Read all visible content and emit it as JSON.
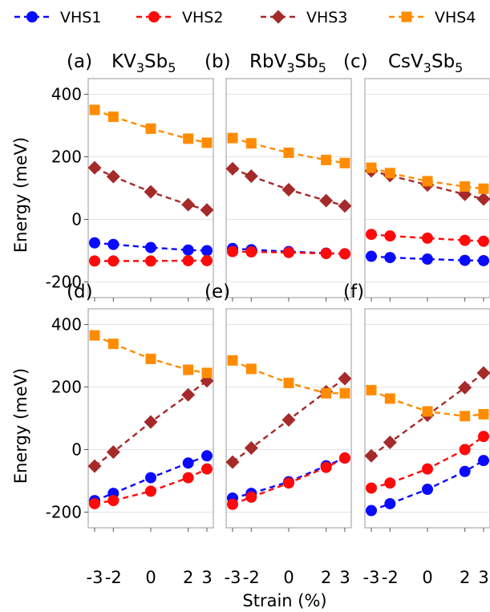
{
  "legend": {
    "entries": [
      {
        "label": "VHS1",
        "color": "#0a0aff",
        "marker": "circle"
      },
      {
        "label": "VHS2",
        "color": "#ff0a0a",
        "marker": "circle"
      },
      {
        "label": "VHS3",
        "color": "#a52a2a",
        "marker": "diamond"
      },
      {
        "label": "VHS4",
        "color": "#ff8c00",
        "marker": "square"
      }
    ]
  },
  "shared_ylabel": "Energy (meV)",
  "shared_xlabel": "Strain (%)",
  "chart_data": [
    {
      "type": "line",
      "panel": "(a)",
      "title_formula": [
        "KV",
        "3",
        "Sb",
        "5"
      ],
      "x": [
        -3,
        -2,
        0,
        2,
        3
      ],
      "xticks": [
        "-3",
        "-2",
        "0",
        "2",
        "3"
      ],
      "ylim": [
        -250,
        450
      ],
      "yticks": [
        -200,
        0,
        200,
        400
      ],
      "series": [
        {
          "name": "VHS1",
          "values": [
            -75,
            -80,
            -90,
            -98,
            -100
          ]
        },
        {
          "name": "VHS2",
          "values": [
            -133,
            -133,
            -133,
            -132,
            -132
          ]
        },
        {
          "name": "VHS3",
          "values": [
            165,
            137,
            88,
            47,
            30
          ]
        },
        {
          "name": "VHS4",
          "values": [
            350,
            328,
            290,
            258,
            245
          ]
        }
      ]
    },
    {
      "type": "line",
      "panel": "(b)",
      "title_formula": [
        "RbV",
        "3",
        "Sb",
        "5"
      ],
      "x": [
        -3,
        -2,
        0,
        2,
        3
      ],
      "xticks": [
        "-3",
        "-2",
        "0",
        "2",
        "3"
      ],
      "ylim": [
        -250,
        450
      ],
      "yticks": [
        -200,
        0,
        200,
        400
      ],
      "series": [
        {
          "name": "VHS1",
          "values": [
            -93,
            -97,
            -103,
            -108,
            -110
          ]
        },
        {
          "name": "VHS2",
          "values": [
            -103,
            -104,
            -106,
            -109,
            -110
          ]
        },
        {
          "name": "VHS3",
          "values": [
            162,
            138,
            95,
            60,
            43
          ]
        },
        {
          "name": "VHS4",
          "values": [
            260,
            243,
            213,
            190,
            180
          ]
        }
      ]
    },
    {
      "type": "line",
      "panel": "(c)",
      "title_formula": [
        "CsV",
        "3",
        "Sb",
        "5"
      ],
      "x": [
        -3,
        -2,
        0,
        2,
        3
      ],
      "xticks": [
        "-3",
        "-2",
        "0",
        "2",
        "3"
      ],
      "ylim": [
        -250,
        450
      ],
      "yticks": [
        -200,
        0,
        200,
        400
      ],
      "series": [
        {
          "name": "VHS1",
          "values": [
            -118,
            -122,
            -127,
            -131,
            -132
          ]
        },
        {
          "name": "VHS2",
          "values": [
            -48,
            -53,
            -60,
            -67,
            -70
          ]
        },
        {
          "name": "VHS3",
          "values": [
            155,
            140,
            110,
            80,
            65
          ]
        },
        {
          "name": "VHS4",
          "values": [
            165,
            148,
            122,
            105,
            98
          ]
        }
      ]
    },
    {
      "type": "line",
      "panel": "(d)",
      "title_formula": [],
      "x": [
        -3,
        -2,
        0,
        2,
        3
      ],
      "xticks": [
        "-3",
        "-2",
        "0",
        "2",
        "3"
      ],
      "ylim": [
        -250,
        450
      ],
      "yticks": [
        -200,
        0,
        200,
        400
      ],
      "series": [
        {
          "name": "VHS1",
          "values": [
            -163,
            -140,
            -90,
            -43,
            -20
          ]
        },
        {
          "name": "VHS2",
          "values": [
            -173,
            -163,
            -133,
            -90,
            -62
          ]
        },
        {
          "name": "VHS3",
          "values": [
            -53,
            -8,
            88,
            175,
            220
          ]
        },
        {
          "name": "VHS4",
          "values": [
            365,
            338,
            290,
            255,
            245
          ]
        }
      ]
    },
    {
      "type": "line",
      "panel": "(e)",
      "title_formula": [],
      "x": [
        -3,
        -2,
        0,
        2,
        3
      ],
      "xticks": [
        "-3",
        "-2",
        "0",
        "2",
        "3"
      ],
      "ylim": [
        -250,
        450
      ],
      "yticks": [
        -200,
        0,
        200,
        400
      ],
      "series": [
        {
          "name": "VHS1",
          "values": [
            -155,
            -140,
            -103,
            -52,
            -27
          ]
        },
        {
          "name": "VHS2",
          "values": [
            -175,
            -152,
            -107,
            -57,
            -27
          ]
        },
        {
          "name": "VHS3",
          "values": [
            -40,
            5,
            95,
            185,
            227
          ]
        },
        {
          "name": "VHS4",
          "values": [
            285,
            258,
            213,
            180,
            180
          ]
        }
      ]
    },
    {
      "type": "line",
      "panel": "(f)",
      "title_formula": [],
      "x": [
        -3,
        -2,
        0,
        2,
        3
      ],
      "xticks": [
        "-3",
        "-2",
        "0",
        "2",
        "3"
      ],
      "ylim": [
        -250,
        450
      ],
      "yticks": [
        -200,
        0,
        200,
        400
      ],
      "series": [
        {
          "name": "VHS1",
          "values": [
            -195,
            -173,
            -127,
            -70,
            -35
          ]
        },
        {
          "name": "VHS2",
          "values": [
            -123,
            -107,
            -62,
            0,
            42
          ]
        },
        {
          "name": "VHS3",
          "values": [
            -20,
            23,
            110,
            198,
            245
          ]
        },
        {
          "name": "VHS4",
          "values": [
            190,
            163,
            122,
            107,
            113
          ]
        }
      ]
    }
  ]
}
